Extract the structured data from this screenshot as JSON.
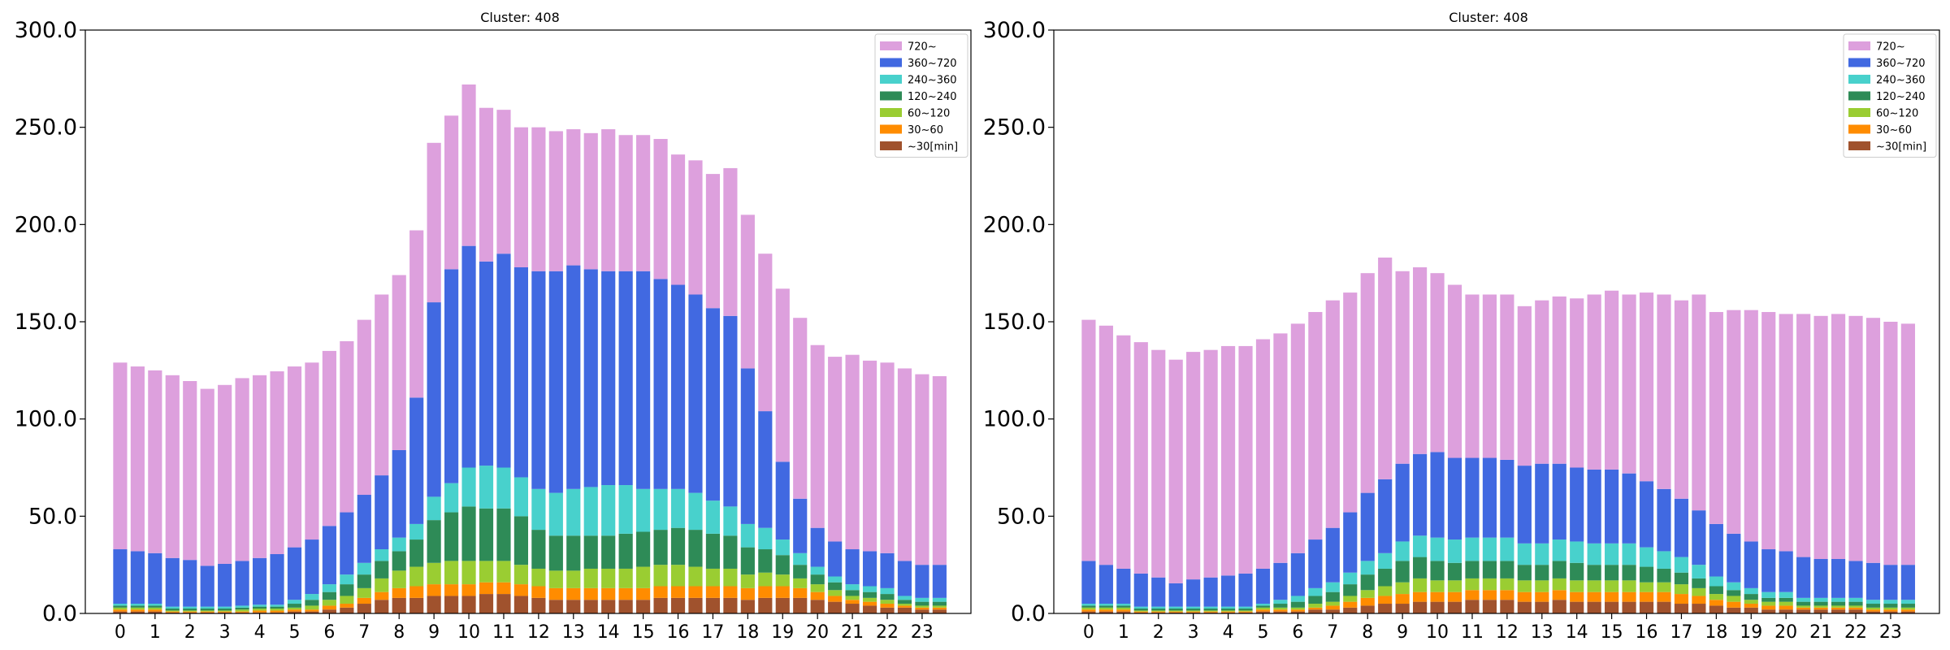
{
  "chart_data": [
    {
      "type": "bar",
      "stacked": true,
      "title": "Cluster: 408",
      "xlabel": "",
      "ylabel": "",
      "ylim": [
        0,
        300
      ],
      "yticks": [
        "0.0",
        "50.0",
        "100.0",
        "150.0",
        "200.0",
        "250.0",
        "300.0"
      ],
      "xtick_labels": [
        "0",
        "1",
        "2",
        "3",
        "4",
        "5",
        "6",
        "7",
        "8",
        "9",
        "10",
        "11",
        "12",
        "13",
        "14",
        "15",
        "16",
        "17",
        "18",
        "19",
        "20",
        "21",
        "22",
        "23"
      ],
      "x": [
        0,
        0.5,
        1,
        1.5,
        2,
        2.5,
        3,
        3.5,
        4,
        4.5,
        5,
        5.5,
        6,
        6.5,
        7,
        7.5,
        8,
        8.5,
        9,
        9.5,
        10,
        10.5,
        11,
        11.5,
        12,
        12.5,
        13,
        13.5,
        14,
        14.5,
        15,
        15.5,
        16,
        16.5,
        17,
        17.5,
        18,
        18.5,
        19,
        19.5,
        20,
        20.5,
        21,
        21.5,
        22,
        22.5,
        23,
        23.5
      ],
      "legend_location": "top-right",
      "series": [
        {
          "name": "~30[min]",
          "color": "#a0522d",
          "values": [
            1,
            1,
            1,
            0.5,
            0.5,
            0.5,
            0.5,
            0.5,
            0.5,
            0.5,
            1,
            1,
            2,
            3,
            5,
            7,
            8,
            8,
            9,
            9,
            9,
            10,
            10,
            9,
            8,
            7,
            7,
            7,
            7,
            7,
            7,
            8,
            8,
            8,
            8,
            8,
            7,
            8,
            8,
            8,
            7,
            6,
            5,
            4,
            3,
            3,
            2,
            2
          ]
        },
        {
          "name": "30~60",
          "color": "#ff8c00",
          "values": [
            1,
            1,
            1,
            0.5,
            0.5,
            0.5,
            0.5,
            0.5,
            1,
            1,
            1,
            1,
            2,
            2,
            3,
            4,
            5,
            6,
            6,
            6,
            6,
            6,
            6,
            6,
            6,
            6,
            6,
            6,
            6,
            6,
            6,
            6,
            6,
            6,
            6,
            6,
            6,
            6,
            6,
            5,
            4,
            3,
            2,
            2,
            2,
            1,
            1,
            1
          ]
        },
        {
          "name": "60~120",
          "color": "#9acd32",
          "values": [
            1,
            1,
            1,
            0.5,
            0.5,
            0.5,
            0.5,
            1,
            1,
            1,
            1,
            2,
            3,
            4,
            5,
            7,
            9,
            10,
            11,
            12,
            12,
            11,
            11,
            10,
            9,
            9,
            9,
            10,
            10,
            10,
            11,
            11,
            11,
            10,
            9,
            9,
            7,
            7,
            6,
            5,
            4,
            3,
            2,
            2,
            2,
            1,
            1,
            1
          ]
        },
        {
          "name": "120~240",
          "color": "#2e8b57",
          "values": [
            1,
            1,
            1,
            1,
            1,
            1,
            1,
            1,
            1,
            1,
            2,
            3,
            4,
            6,
            7,
            9,
            10,
            14,
            22,
            25,
            28,
            27,
            27,
            25,
            20,
            18,
            18,
            17,
            17,
            18,
            18,
            18,
            19,
            19,
            18,
            17,
            14,
            12,
            10,
            7,
            5,
            4,
            3,
            3,
            3,
            2,
            2,
            2
          ]
        },
        {
          "name": "240~360",
          "color": "#48d1cc",
          "values": [
            1,
            1,
            1,
            1,
            1,
            1,
            1,
            1,
            1,
            1,
            2,
            3,
            4,
            5,
            6,
            6,
            7,
            8,
            12,
            15,
            20,
            22,
            21,
            20,
            21,
            22,
            24,
            25,
            26,
            25,
            22,
            21,
            20,
            19,
            17,
            15,
            12,
            11,
            8,
            6,
            4,
            3,
            3,
            3,
            3,
            2,
            2,
            2
          ]
        },
        {
          "name": "360~720",
          "color": "#4169e1",
          "values": [
            28,
            27,
            26,
            25,
            24,
            21,
            22,
            23,
            24,
            26,
            27,
            28,
            30,
            32,
            35,
            38,
            45,
            65,
            100,
            110,
            114,
            105,
            110,
            108,
            112,
            114,
            115,
            112,
            110,
            110,
            112,
            108,
            105,
            102,
            99,
            98,
            80,
            60,
            40,
            28,
            20,
            18,
            18,
            18,
            18,
            18,
            17,
            17
          ]
        },
        {
          "name": "720~",
          "color": "#dda0dd",
          "values": [
            96,
            95,
            94,
            94,
            92,
            91,
            92,
            94,
            94,
            94,
            93,
            91,
            90,
            88,
            90,
            93,
            90,
            86,
            82,
            79,
            83,
            79,
            74,
            72,
            74,
            72,
            70,
            70,
            73,
            70,
            70,
            72,
            67,
            69,
            69,
            76,
            79,
            81,
            89,
            93,
            94,
            95,
            100,
            98,
            98,
            99,
            98,
            97
          ]
        }
      ]
    },
    {
      "type": "bar",
      "stacked": true,
      "title": "Cluster: 408",
      "xlabel": "",
      "ylabel": "",
      "ylim": [
        0,
        300
      ],
      "yticks": [
        "0.0",
        "50.0",
        "100.0",
        "150.0",
        "200.0",
        "250.0",
        "300.0"
      ],
      "xtick_labels": [
        "0",
        "1",
        "2",
        "3",
        "4",
        "5",
        "6",
        "7",
        "8",
        "9",
        "10",
        "11",
        "12",
        "13",
        "14",
        "15",
        "16",
        "17",
        "18",
        "19",
        "20",
        "21",
        "22",
        "23"
      ],
      "x": [
        0,
        0.5,
        1,
        1.5,
        2,
        2.5,
        3,
        3.5,
        4,
        4.5,
        5,
        5.5,
        6,
        6.5,
        7,
        7.5,
        8,
        8.5,
        9,
        9.5,
        10,
        10.5,
        11,
        11.5,
        12,
        12.5,
        13,
        13.5,
        14,
        14.5,
        15,
        15.5,
        16,
        16.5,
        17,
        17.5,
        18,
        18.5,
        19,
        19.5,
        20,
        20.5,
        21,
        21.5,
        22,
        22.5,
        23,
        23.5
      ],
      "legend_location": "top-right",
      "series": [
        {
          "name": "~30[min]",
          "color": "#a0522d",
          "values": [
            1,
            1,
            1,
            0.5,
            0.5,
            0.5,
            0.5,
            0.5,
            0.5,
            0.5,
            1,
            1,
            1,
            2,
            2,
            3,
            4,
            5,
            5,
            6,
            6,
            6,
            7,
            7,
            7,
            6,
            6,
            7,
            6,
            6,
            6,
            6,
            6,
            6,
            5,
            5,
            4,
            3,
            3,
            2,
            2,
            2,
            2,
            2,
            2,
            1,
            1,
            1
          ]
        },
        {
          "name": "30~60",
          "color": "#ff8c00",
          "values": [
            1,
            1,
            1,
            0.5,
            0.5,
            0.5,
            0.5,
            0.5,
            0.5,
            0.5,
            1,
            1,
            1,
            1,
            2,
            3,
            4,
            4,
            5,
            5,
            5,
            5,
            5,
            5,
            5,
            5,
            5,
            5,
            5,
            5,
            5,
            5,
            5,
            5,
            5,
            4,
            3,
            3,
            2,
            2,
            2,
            1,
            1,
            1,
            1,
            1,
            1,
            1
          ]
        },
        {
          "name": "60~120",
          "color": "#9acd32",
          "values": [
            1,
            1,
            1,
            0.5,
            0.5,
            0.5,
            0.5,
            0.5,
            0.5,
            0.5,
            1,
            1,
            1,
            2,
            2,
            3,
            4,
            5,
            6,
            7,
            6,
            6,
            6,
            6,
            6,
            6,
            6,
            6,
            6,
            6,
            6,
            6,
            5,
            5,
            5,
            4,
            3,
            3,
            2,
            2,
            2,
            1,
            1,
            1,
            1,
            1,
            1,
            1
          ]
        },
        {
          "name": "120~240",
          "color": "#2e8b57",
          "values": [
            1,
            1,
            1,
            1,
            1,
            1,
            1,
            1,
            1,
            1,
            1,
            2,
            3,
            4,
            5,
            6,
            8,
            9,
            11,
            11,
            10,
            9,
            9,
            9,
            9,
            8,
            8,
            9,
            9,
            8,
            8,
            8,
            8,
            7,
            6,
            5,
            4,
            3,
            3,
            2,
            2,
            2,
            2,
            2,
            2,
            2,
            2,
            2
          ]
        },
        {
          "name": "240~360",
          "color": "#48d1cc",
          "values": [
            1,
            1,
            1,
            1,
            1,
            1,
            1,
            1,
            1,
            1,
            1,
            2,
            3,
            4,
            5,
            6,
            7,
            8,
            10,
            11,
            12,
            12,
            12,
            12,
            12,
            11,
            11,
            11,
            11,
            11,
            11,
            11,
            10,
            9,
            8,
            7,
            5,
            4,
            3,
            3,
            3,
            2,
            2,
            2,
            2,
            2,
            2,
            2
          ]
        },
        {
          "name": "360~720",
          "color": "#4169e1",
          "values": [
            22,
            20,
            18,
            17,
            15,
            12,
            14,
            15,
            16,
            17,
            18,
            19,
            22,
            25,
            28,
            31,
            35,
            38,
            40,
            42,
            44,
            42,
            41,
            41,
            40,
            40,
            41,
            39,
            38,
            38,
            38,
            36,
            34,
            32,
            30,
            28,
            27,
            25,
            24,
            22,
            21,
            21,
            20,
            20,
            19,
            19,
            18,
            18
          ]
        },
        {
          "name": "720~",
          "color": "#dda0dd",
          "values": [
            124,
            123,
            120,
            119,
            117,
            115,
            117,
            117,
            118,
            117,
            118,
            118,
            118,
            117,
            117,
            113,
            113,
            114,
            99,
            96,
            92,
            89,
            84,
            84,
            85,
            82,
            84,
            86,
            87,
            90,
            92,
            92,
            97,
            100,
            102,
            111,
            109,
            115,
            119,
            122,
            122,
            125,
            125,
            126,
            126,
            126,
            125,
            124
          ]
        }
      ]
    }
  ]
}
